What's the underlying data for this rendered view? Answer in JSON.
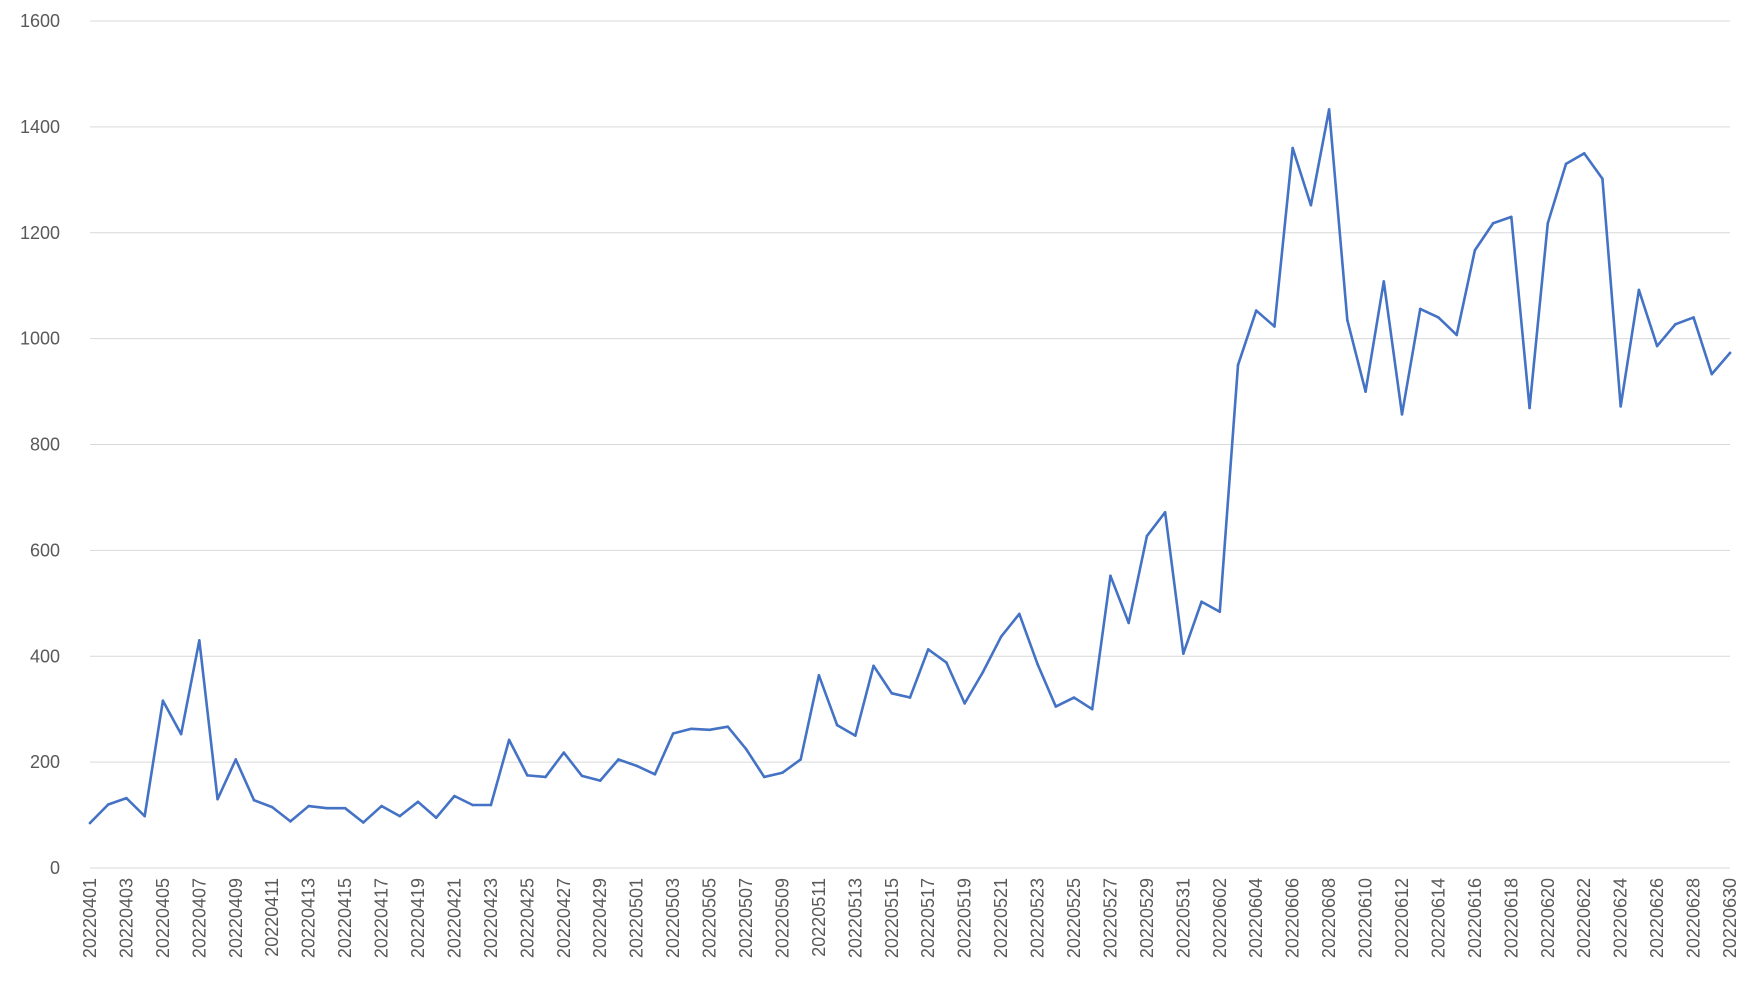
{
  "chart_data": {
    "type": "line",
    "grid": true,
    "legend": "none",
    "ylim": [
      0,
      1600
    ],
    "yticks": [
      0,
      200,
      400,
      600,
      800,
      1000,
      1200,
      1400,
      1600
    ],
    "x": [
      "20220401",
      "20220402",
      "20220403",
      "20220404",
      "20220405",
      "20220406",
      "20220407",
      "20220408",
      "20220409",
      "20220410",
      "20220411",
      "20220412",
      "20220413",
      "20220414",
      "20220415",
      "20220416",
      "20220417",
      "20220418",
      "20220419",
      "20220420",
      "20220421",
      "20220422",
      "20220423",
      "20220424",
      "20220425",
      "20220426",
      "20220427",
      "20220428",
      "20220429",
      "20220430",
      "20220501",
      "20220502",
      "20220503",
      "20220504",
      "20220505",
      "20220506",
      "20220507",
      "20220508",
      "20220509",
      "20220510",
      "20220511",
      "20220512",
      "20220513",
      "20220514",
      "20220515",
      "20220516",
      "20220517",
      "20220518",
      "20220519",
      "20220520",
      "20220521",
      "20220522",
      "20220523",
      "20220524",
      "20220525",
      "20220526",
      "20220527",
      "20220528",
      "20220529",
      "20220530",
      "20220531",
      "20220601",
      "20220602",
      "20220603",
      "20220604",
      "20220605",
      "20220606",
      "20220607",
      "20220608",
      "20220609",
      "20220610",
      "20220611",
      "20220612",
      "20220613",
      "20220614",
      "20220615",
      "20220616",
      "20220617",
      "20220618",
      "20220619",
      "20220620",
      "20220621",
      "20220622",
      "20220623",
      "20220624",
      "20220625",
      "20220626",
      "20220627",
      "20220628",
      "20220629",
      "20220630"
    ],
    "xticks_shown": [
      "20220401",
      "20220403",
      "20220405",
      "20220407",
      "20220409",
      "20220411",
      "20220413",
      "20220415",
      "20220417",
      "20220419",
      "20220421",
      "20220423",
      "20220425",
      "20220427",
      "20220429",
      "20220501",
      "20220503",
      "20220505",
      "20220507",
      "20220509",
      "20220511",
      "20220513",
      "20220515",
      "20220517",
      "20220519",
      "20220521",
      "20220523",
      "20220525",
      "20220527",
      "20220529",
      "20220531",
      "20220602",
      "20220604",
      "20220606",
      "20220608",
      "20220610",
      "20220612",
      "20220614",
      "20220616",
      "20220618",
      "20220620",
      "20220622",
      "20220624",
      "20220626",
      "20220628",
      "20220630"
    ],
    "series": [
      {
        "color": "#4472c4",
        "values": [
          85,
          120,
          132,
          98,
          316,
          253,
          430,
          130,
          205,
          128,
          115,
          88,
          117,
          113,
          113,
          86,
          117,
          98,
          125,
          95,
          136,
          119,
          119,
          242,
          175,
          172,
          218,
          174,
          165,
          205,
          193,
          177,
          254,
          263,
          261,
          267,
          225,
          172,
          180,
          205,
          364,
          270,
          250,
          382,
          330,
          322,
          413,
          388,
          311,
          370,
          437,
          480,
          385,
          305,
          322,
          300,
          552,
          463,
          627,
          672,
          405,
          503,
          484,
          950,
          1053,
          1023,
          1360,
          1252,
          1433,
          1035,
          900,
          1108,
          857,
          1056,
          1040,
          1007,
          1167,
          1218,
          1230,
          869,
          1218,
          1330,
          1350,
          1302,
          872,
          1092,
          986,
          1027,
          1040,
          933,
          973
        ]
      }
    ]
  }
}
